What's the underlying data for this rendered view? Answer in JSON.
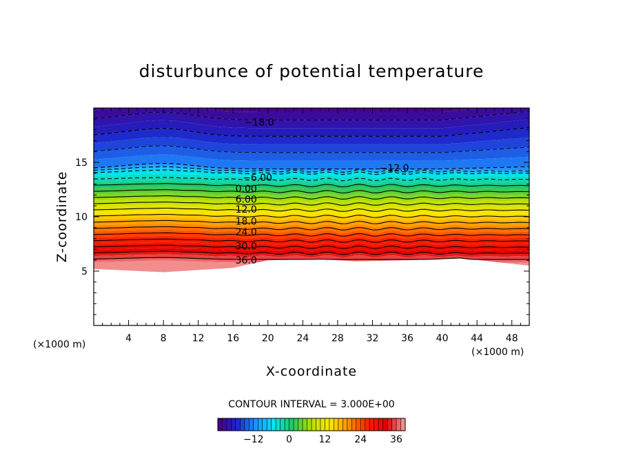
{
  "chart_data": {
    "type": "contour",
    "title": "disturbunce of potential temperature",
    "xlabel": "X-coordinate",
    "ylabel": "Z-coordinate",
    "x_unit": "(×1000 m)",
    "y_unit": "(×1000 m)",
    "xlim": [
      0,
      50
    ],
    "ylim": [
      0,
      20
    ],
    "x_ticks": [
      4,
      8,
      12,
      16,
      20,
      24,
      28,
      32,
      36,
      40,
      44,
      48
    ],
    "y_ticks": [
      5,
      10,
      15
    ],
    "contour_interval_label": "CONTOUR INTERVAL = 3.000E+00",
    "contour_interval": 3.0,
    "value_range": [
      -24,
      39
    ],
    "colorbar_ticks": [
      "−12",
      "0",
      "12",
      "24",
      "36"
    ],
    "colorbar_tick_values": [
      -12,
      0,
      12,
      24,
      36
    ],
    "colormap": [
      "#4b0082",
      "#1e22c8",
      "#1e90ff",
      "#00e5ee",
      "#22c55e",
      "#b7e000",
      "#ffe600",
      "#ff8c00",
      "#ff2200",
      "#e00000",
      "#f4a0a0"
    ],
    "contour_labels": [
      {
        "text": "−18.0",
        "x": 19.0,
        "z": 18.7
      },
      {
        "text": "−12.0",
        "x": 34.5,
        "z": 14.5
      },
      {
        "text": "−6.00",
        "x": 18.8,
        "z": 13.6
      },
      {
        "text": "0.00",
        "x": 17.5,
        "z": 12.6
      },
      {
        "text": "6.00",
        "x": 17.5,
        "z": 11.6
      },
      {
        "text": "12.0",
        "x": 17.5,
        "z": 10.7
      },
      {
        "text": "18.0",
        "x": 17.5,
        "z": 9.6
      },
      {
        "text": "24.0",
        "x": 17.5,
        "z": 8.6
      },
      {
        "text": "30.0",
        "x": 17.5,
        "z": 7.3
      },
      {
        "text": "36.0",
        "x": 17.5,
        "z": 6.0
      }
    ],
    "negative_contours_dashed": true,
    "lower_boundary_z_approx": [
      [
        0,
        5.2
      ],
      [
        8,
        4.9
      ],
      [
        16,
        5.3
      ],
      [
        20,
        6.0
      ],
      [
        26,
        6.1
      ],
      [
        30,
        5.9
      ],
      [
        36,
        6.0
      ],
      [
        42,
        6.2
      ],
      [
        50,
        5.5
      ]
    ]
  }
}
